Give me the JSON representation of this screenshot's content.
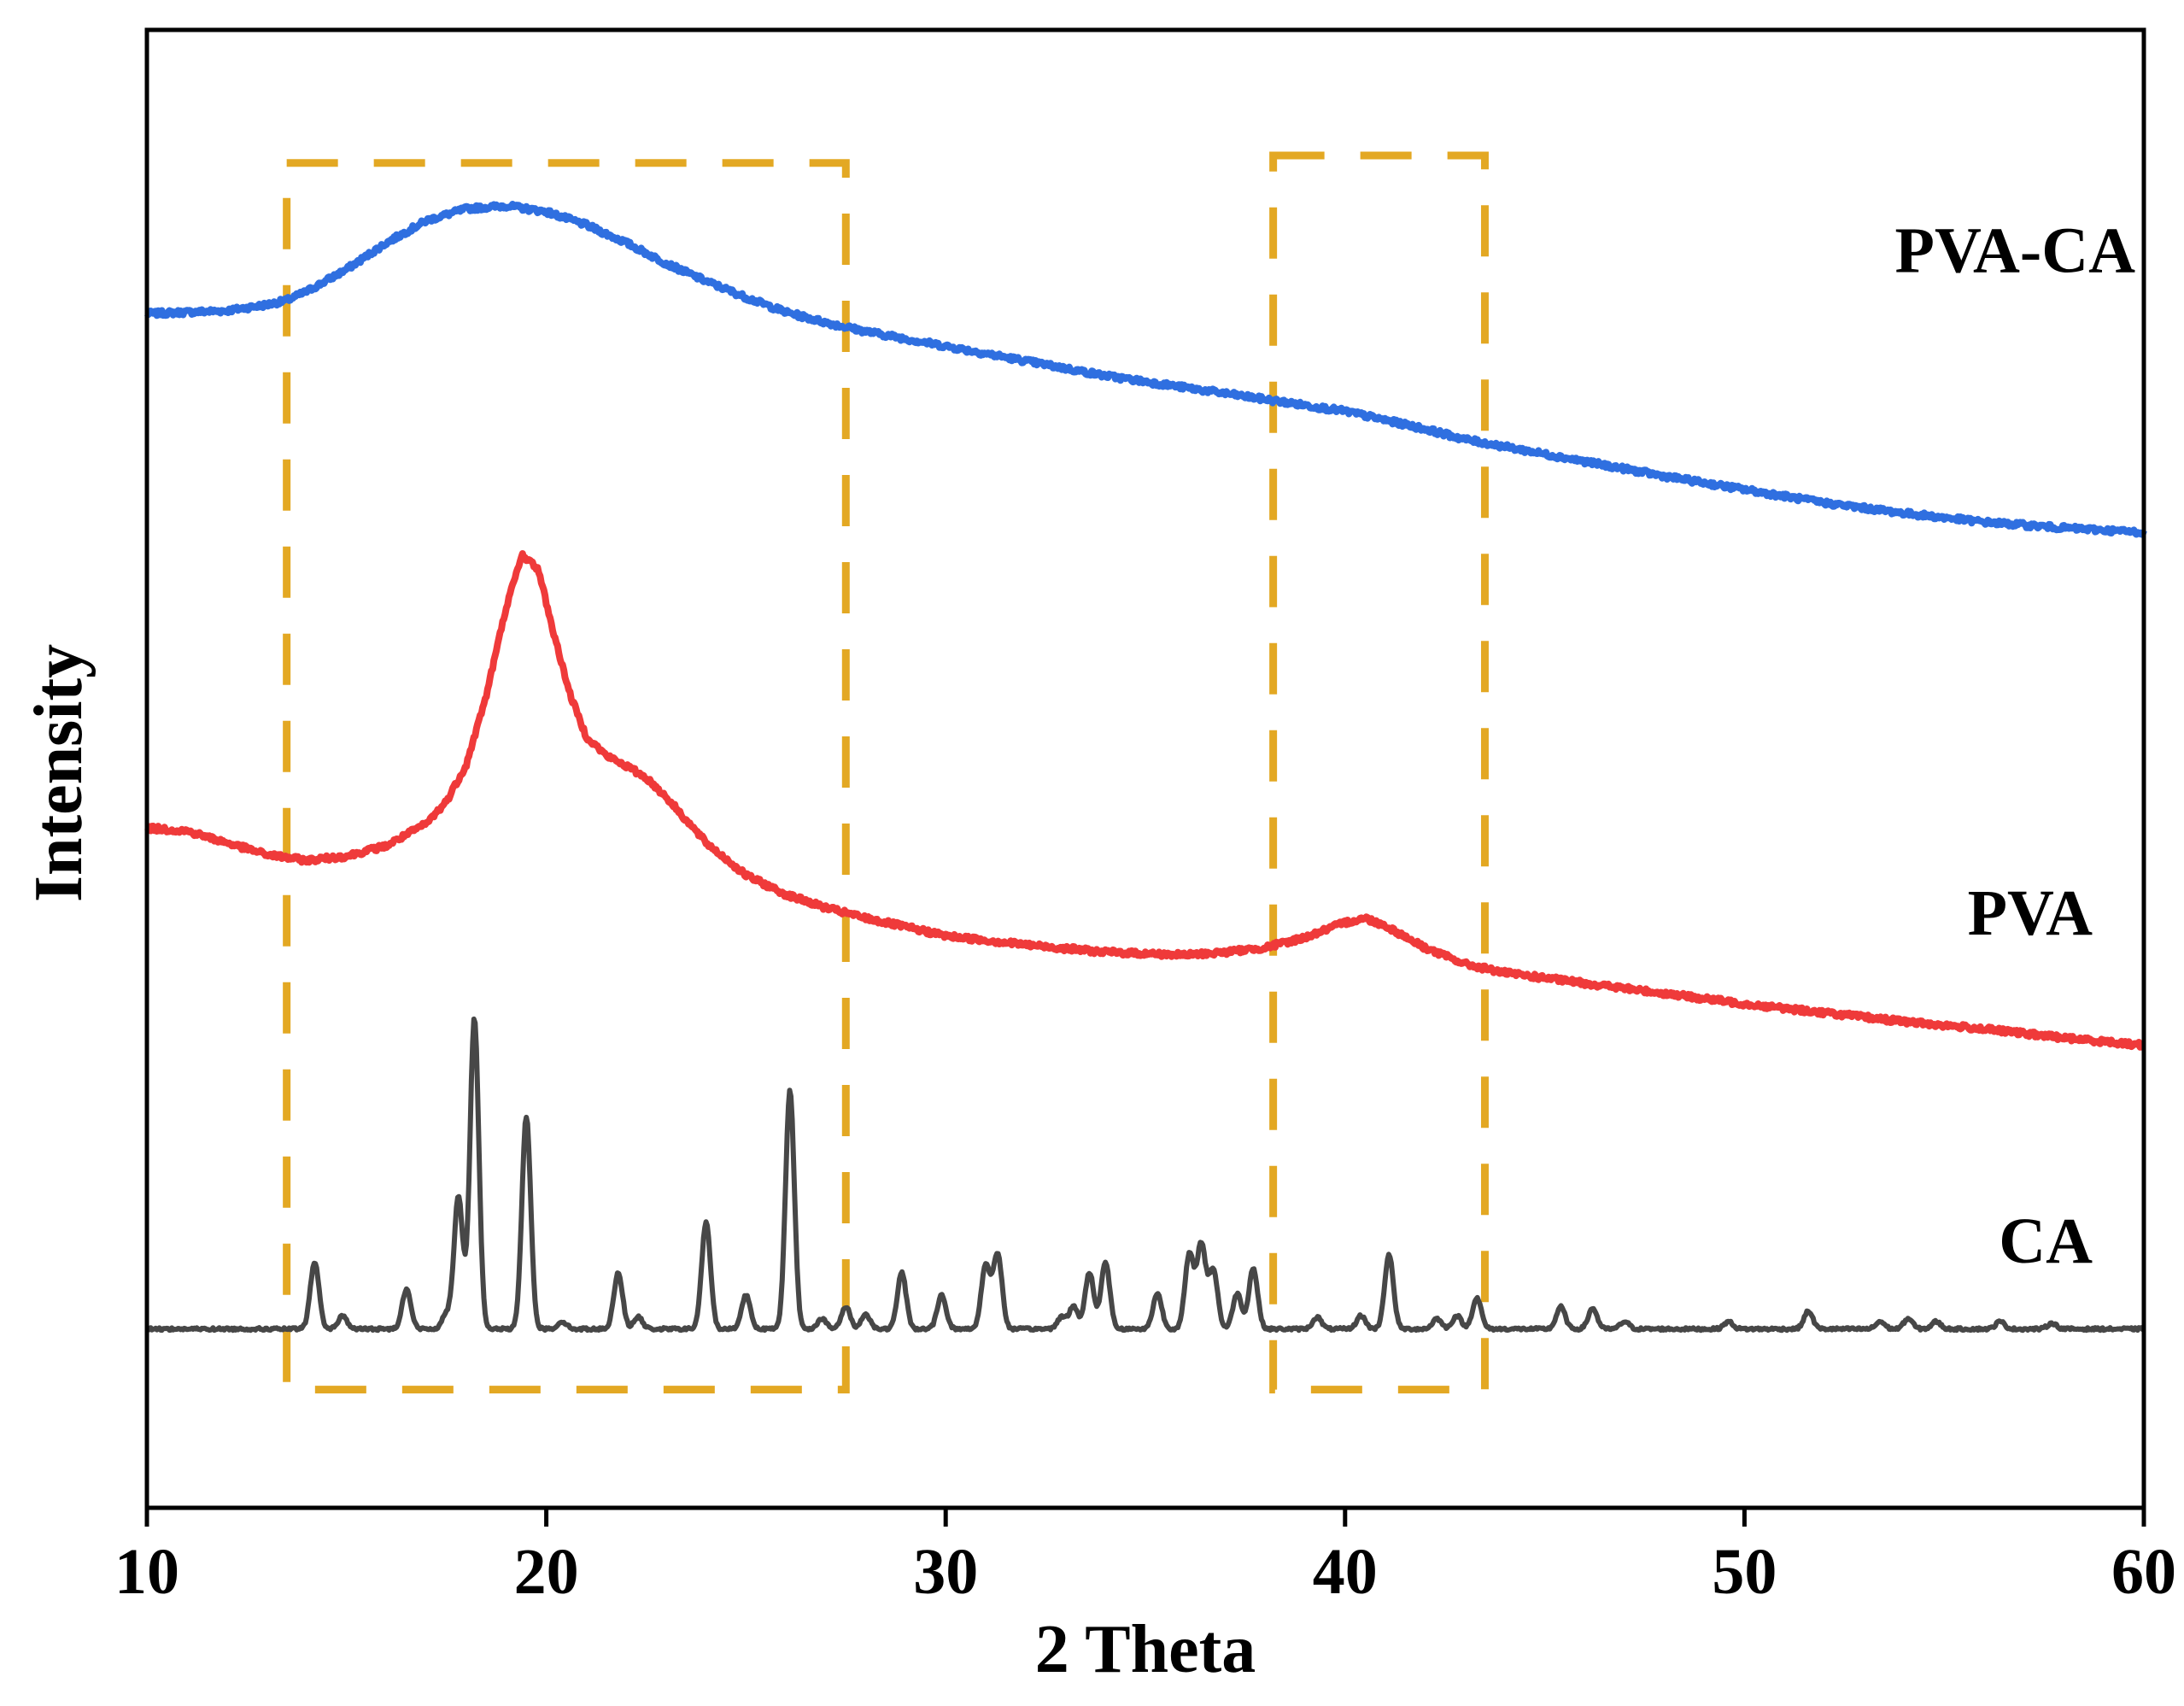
{
  "chart_data": {
    "type": "line",
    "title": "",
    "xlabel": "2 Theta",
    "ylabel": "Intensity",
    "xlim": [
      10,
      60
    ],
    "ylim": [
      0,
      100
    ],
    "y_ticks_shown": false,
    "xticks": [
      10,
      20,
      30,
      40,
      50,
      60
    ],
    "tick_labels": [
      "10",
      "20",
      "30",
      "40",
      "50",
      "60"
    ],
    "grid": false,
    "legend": "none (series labeled directly at right)",
    "series": [
      {
        "name": "PVA-CA",
        "label": "PVA-CA",
        "color": "#2f6fe0",
        "x": [
          10,
          11,
          12,
          13,
          13.5,
          14,
          15,
          16,
          17,
          18,
          19,
          20,
          21,
          22,
          23,
          24,
          25,
          26,
          27,
          28,
          29,
          30,
          32,
          34,
          36,
          38,
          40,
          42,
          43,
          44,
          46,
          48,
          50,
          52,
          54,
          56,
          58,
          60
        ],
        "y": [
          80.8,
          80.9,
          81.0,
          81.4,
          81.7,
          82.3,
          83.8,
          85.6,
          87.1,
          87.9,
          88.1,
          87.7,
          86.8,
          85.6,
          84.2,
          83.0,
          81.9,
          80.9,
          80.2,
          79.6,
          79.1,
          78.6,
          77.6,
          76.6,
          75.8,
          75.0,
          74.2,
          73.0,
          72.3,
          71.8,
          70.8,
          69.8,
          68.9,
          68.0,
          67.3,
          66.7,
          66.3,
          66.0
        ]
      },
      {
        "name": "PVA",
        "label": "PVA",
        "color": "#ef3a3a",
        "x": [
          10,
          11,
          12,
          13,
          14,
          15,
          16,
          17,
          17.5,
          18,
          18.5,
          19,
          19.4,
          19.8,
          20.2,
          20.6,
          21,
          21.5,
          22,
          22.5,
          23,
          24,
          25,
          26,
          27,
          28,
          30,
          32,
          34,
          36,
          37,
          38,
          39,
          40,
          40.5,
          41,
          42,
          43,
          44,
          46,
          48,
          50,
          52,
          54,
          56,
          58,
          60
        ],
        "y": [
          46.0,
          45.8,
          45.0,
          44.2,
          43.8,
          44.1,
          44.8,
          46.3,
          47.8,
          50.3,
          55.0,
          61.0,
          64.5,
          63.5,
          59.0,
          55.0,
          52.2,
          50.9,
          50.2,
          49.4,
          48.1,
          45.0,
          42.8,
          41.5,
          40.6,
          39.9,
          38.7,
          38.1,
          37.6,
          37.4,
          37.6,
          37.9,
          38.6,
          39.6,
          39.9,
          39.4,
          37.9,
          36.8,
          36.2,
          35.5,
          34.8,
          34.1,
          33.5,
          32.9,
          32.4,
          31.8,
          31.3
        ]
      },
      {
        "name": "CA",
        "label": "CA",
        "color": "#474747",
        "baseline": 12.1,
        "peaks": [
          {
            "x": 14.2,
            "y": 16.6
          },
          {
            "x": 14.9,
            "y": 13.0
          },
          {
            "x": 16.5,
            "y": 14.8
          },
          {
            "x": 17.5,
            "y": 13.1
          },
          {
            "x": 17.8,
            "y": 21.1
          },
          {
            "x": 18.2,
            "y": 33.1
          },
          {
            "x": 19.5,
            "y": 26.5
          },
          {
            "x": 20.4,
            "y": 12.6
          },
          {
            "x": 21.8,
            "y": 15.9
          },
          {
            "x": 22.3,
            "y": 12.9
          },
          {
            "x": 24.0,
            "y": 19.3
          },
          {
            "x": 25.0,
            "y": 14.4
          },
          {
            "x": 26.1,
            "y": 28.2
          },
          {
            "x": 26.9,
            "y": 12.8
          },
          {
            "x": 27.5,
            "y": 13.6
          },
          {
            "x": 28.0,
            "y": 13.1
          },
          {
            "x": 28.9,
            "y": 15.9
          },
          {
            "x": 29.9,
            "y": 14.4
          },
          {
            "x": 31.0,
            "y": 16.4
          },
          {
            "x": 31.3,
            "y": 17.2
          },
          {
            "x": 32.9,
            "y": 12.9
          },
          {
            "x": 33.2,
            "y": 13.6
          },
          {
            "x": 33.6,
            "y": 15.9
          },
          {
            "x": 34.0,
            "y": 16.6
          },
          {
            "x": 35.3,
            "y": 14.5
          },
          {
            "x": 36.1,
            "y": 17.1
          },
          {
            "x": 36.4,
            "y": 17.8
          },
          {
            "x": 36.7,
            "y": 16.1
          },
          {
            "x": 37.3,
            "y": 14.5
          },
          {
            "x": 37.7,
            "y": 16.2
          },
          {
            "x": 39.3,
            "y": 12.9
          },
          {
            "x": 40.4,
            "y": 13.0
          },
          {
            "x": 41.1,
            "y": 17.1
          },
          {
            "x": 42.3,
            "y": 12.8
          },
          {
            "x": 42.8,
            "y": 13.0
          },
          {
            "x": 43.3,
            "y": 14.2
          },
          {
            "x": 45.4,
            "y": 13.6
          },
          {
            "x": 46.2,
            "y": 13.5
          },
          {
            "x": 47.0,
            "y": 12.6
          },
          {
            "x": 49.6,
            "y": 12.6
          },
          {
            "x": 51.6,
            "y": 13.3
          },
          {
            "x": 53.4,
            "y": 12.6
          },
          {
            "x": 54.1,
            "y": 12.8
          },
          {
            "x": 54.8,
            "y": 12.6
          },
          {
            "x": 56.4,
            "y": 12.6
          },
          {
            "x": 57.7,
            "y": 12.5
          }
        ]
      }
    ],
    "annotations": [
      {
        "kind": "dashed-box",
        "color": "#e3a823",
        "x_range": [
          13.5,
          27.5
        ],
        "y_range": [
          8.0,
          91.0
        ]
      },
      {
        "kind": "dashed-box",
        "color": "#e3a823",
        "x_range": [
          38.2,
          43.5
        ],
        "y_range": [
          8.0,
          91.5
        ]
      }
    ]
  }
}
